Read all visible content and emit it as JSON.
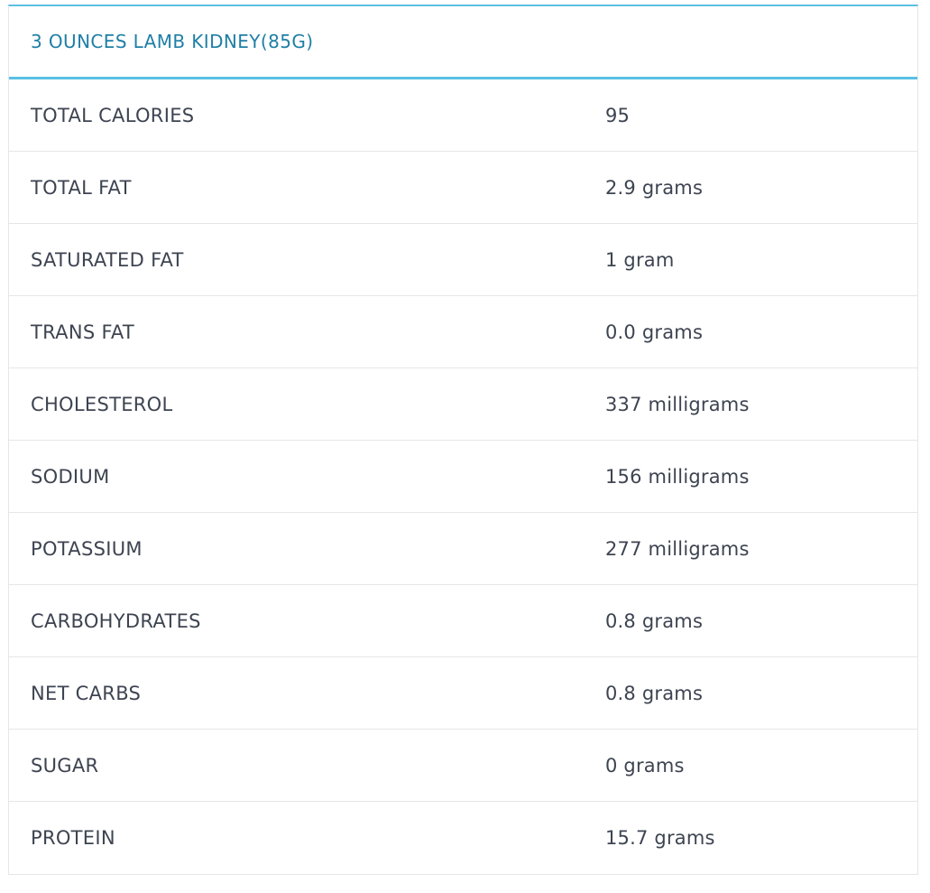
{
  "header": {
    "title": "3 OUNCES LAMB KIDNEY(85G)"
  },
  "colors": {
    "accent": "#5bbfe3",
    "header_text": "#1f7fa6",
    "body_text": "#3d4451",
    "divider": "#e6e6e6"
  },
  "rows": [
    {
      "label": "TOTAL CALORIES",
      "value": "95"
    },
    {
      "label": "TOTAL FAT",
      "value": "2.9 grams"
    },
    {
      "label": "SATURATED FAT",
      "value": "1 gram"
    },
    {
      "label": "TRANS FAT",
      "value": "0.0 grams"
    },
    {
      "label": "CHOLESTEROL",
      "value": "337 milligrams"
    },
    {
      "label": "SODIUM",
      "value": "156 milligrams"
    },
    {
      "label": "POTASSIUM",
      "value": "277 milligrams"
    },
    {
      "label": "CARBOHYDRATES",
      "value": "0.8 grams"
    },
    {
      "label": "NET CARBS",
      "value": "0.8 grams"
    },
    {
      "label": "SUGAR",
      "value": "0 grams"
    },
    {
      "label": "PROTEIN",
      "value": "15.7 grams"
    }
  ]
}
